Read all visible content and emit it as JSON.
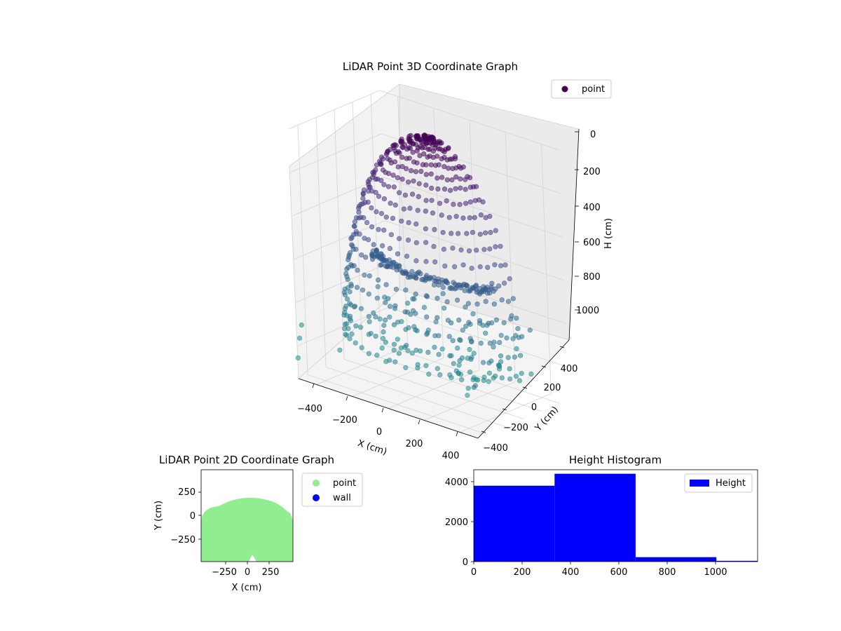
{
  "chart_data": [
    {
      "type": "scatter",
      "title": "LiDAR Point 3D Coordinate Graph",
      "xlabel": "X (cm)",
      "ylabel": "Y (cm)",
      "zlabel": "H (cm)",
      "x_ticks": [
        "−400",
        "−200",
        "0",
        "200",
        "400"
      ],
      "y_ticks": [
        "−400",
        "−200",
        "0",
        "200",
        "400"
      ],
      "z_ticks": [
        "0",
        "200",
        "400",
        "600",
        "800",
        "1000"
      ],
      "xlim": [
        -500,
        500
      ],
      "ylim": [
        -500,
        500
      ],
      "zlim": [
        0,
        1150
      ],
      "z_inverted": true,
      "colormap": "viridis",
      "legend": {
        "position": "top-right",
        "entries": [
          {
            "label": "point",
            "color": "#440154"
          }
        ]
      },
      "grid": true,
      "series": [
        {
          "name": "point",
          "shape": "half-dome shell of points, radius ~470 cm, rising to H ~0 at the crest and ~1000 at the base, plus an inner arc near H ~600"
        }
      ]
    },
    {
      "type": "scatter",
      "title": "LiDAR Point 2D Coordinate Graph",
      "xlabel": "X (cm)",
      "ylabel": "Y (cm)",
      "x_ticks": [
        "−250",
        "0",
        "250"
      ],
      "y_ticks": [
        "250",
        "0",
        "−250"
      ],
      "xlim": [
        -490,
        490
      ],
      "ylim": [
        -500,
        500
      ],
      "legend": {
        "position": "right",
        "entries": [
          {
            "label": "point",
            "color": "#90ee90"
          },
          {
            "label": "wall",
            "color": "#0000ff"
          }
        ]
      },
      "series": [
        {
          "name": "point",
          "color": "#90ee90",
          "region": "half disc, radius ~470, y from ~-500 to ~130"
        }
      ]
    },
    {
      "type": "bar",
      "title": "Height Histogram",
      "xlabel": "",
      "ylabel": "",
      "x_ticks": [
        "0",
        "200",
        "400",
        "600",
        "800",
        "1000"
      ],
      "y_ticks": [
        "0",
        "2000",
        "4000"
      ],
      "xlim": [
        0,
        1170
      ],
      "ylim": [
        0,
        4600
      ],
      "legend": {
        "position": "top-right",
        "entries": [
          {
            "label": "Height",
            "color": "#0000ff"
          }
        ]
      },
      "bins": [
        {
          "from": 0,
          "to": 333,
          "count": 3800
        },
        {
          "from": 333,
          "to": 667,
          "count": 4400
        },
        {
          "from": 667,
          "to": 1000,
          "count": 220
        },
        {
          "from": 1000,
          "to": 1170,
          "count": 40
        }
      ],
      "color": "#0000ff"
    }
  ]
}
